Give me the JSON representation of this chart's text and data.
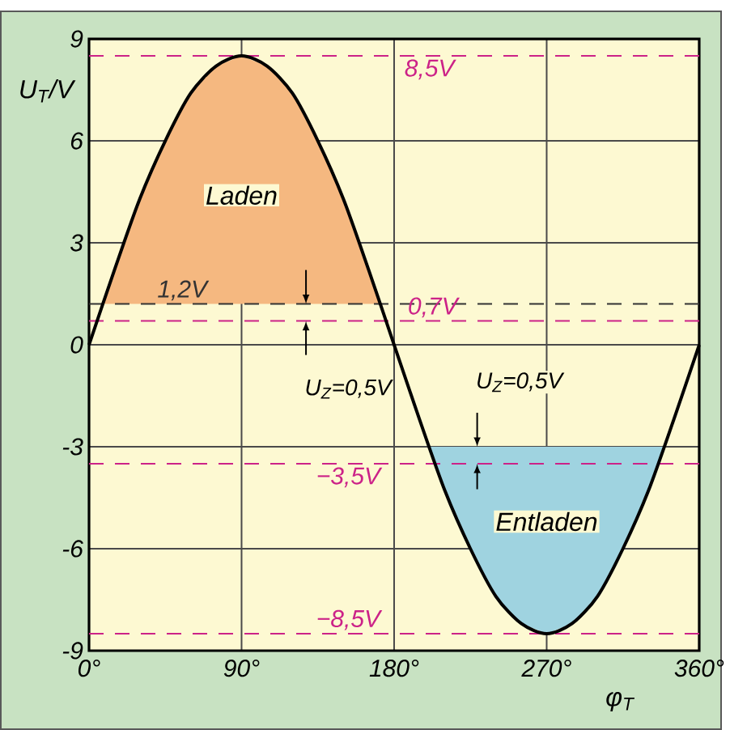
{
  "chart_data": {
    "type": "line",
    "xlabel": "φ$_{T}$",
    "ylabel": "U$_{T}$/V",
    "xlim": [
      0,
      360
    ],
    "ylim": [
      -9,
      9
    ],
    "xticks": [
      {
        "value": 0,
        "label": "0°"
      },
      {
        "value": 90,
        "label": "90°"
      },
      {
        "value": 180,
        "label": "180°"
      },
      {
        "value": 270,
        "label": "270°"
      },
      {
        "value": 360,
        "label": "360°"
      }
    ],
    "yticks": [
      -9,
      -6,
      -3,
      0,
      3,
      6,
      9
    ],
    "grid": true,
    "series": [
      {
        "type": "area",
        "color": "#f5b880",
        "x": [
          8.1,
          15,
          30,
          45,
          60,
          75,
          90,
          105,
          120,
          135,
          150,
          165,
          171.9
        ],
        "values": [
          1.2,
          2.2,
          4.3,
          6.0,
          7.4,
          8.2,
          8.5,
          8.2,
          7.4,
          6.0,
          4.3,
          2.2,
          1.2
        ]
      },
      {
        "type": "area",
        "color": "#9fd3e0",
        "x": [
          200.7,
          210,
          225,
          240,
          255,
          270,
          285,
          300,
          315,
          330,
          339.3
        ],
        "values": [
          -3,
          -4.3,
          -6.0,
          -7.4,
          -8.2,
          -8.5,
          -8.2,
          -7.4,
          -6.0,
          -4.3,
          -3
        ]
      },
      {
        "color": "#000000",
        "x": [
          0,
          15,
          30,
          45,
          60,
          75,
          90,
          105,
          120,
          135,
          150,
          165,
          180,
          195,
          210,
          225,
          240,
          255,
          270,
          285,
          300,
          315,
          330,
          345,
          360
        ],
        "values": [
          0,
          2.2,
          4.3,
          6.0,
          7.4,
          8.2,
          8.5,
          8.2,
          7.4,
          6.0,
          4.3,
          2.2,
          0,
          -2.2,
          -4.3,
          -6.0,
          -7.4,
          -8.2,
          -8.5,
          -8.2,
          -7.4,
          -6.0,
          -4.3,
          -2.2,
          0
        ]
      }
    ],
    "ref_lines": [
      {
        "axis": "y",
        "value": 8.5,
        "label": "8,5V",
        "color": "#cc2288",
        "line_style": "dashed"
      },
      {
        "axis": "y",
        "value": 1.2,
        "label": "1,2V",
        "color": "#333333",
        "line_style": "dashed"
      },
      {
        "axis": "y",
        "value": 0.7,
        "label": "0,7V",
        "color": "#cc2288",
        "line_style": "dashed"
      },
      {
        "axis": "y",
        "value": -3.5,
        "label": "−3,5V",
        "color": "#cc2288",
        "line_style": "dashed"
      },
      {
        "axis": "y",
        "value": -8.5,
        "label": "−8,5V",
        "color": "#cc2288",
        "line_style": "dashed"
      }
    ],
    "annotations": [
      "Laden",
      "Entladen",
      {
        "text": "U$_{Z}$=0,5V",
        "x": 128,
        "y": 0.7
      },
      {
        "text": "U$_{Z}$=0,5V",
        "x": 229,
        "y": -3
      }
    ]
  }
}
